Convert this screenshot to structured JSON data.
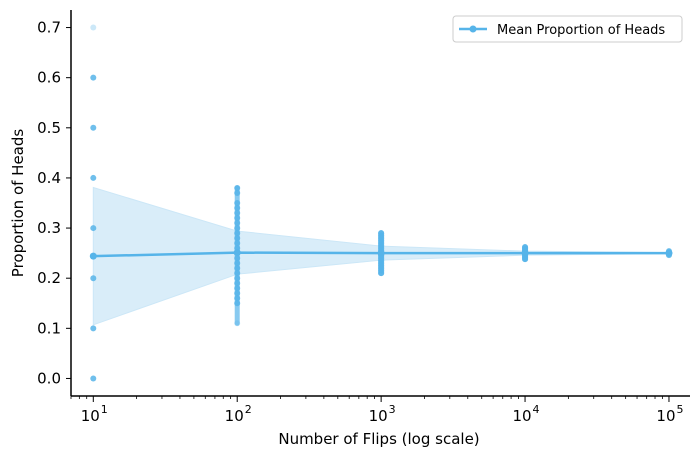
{
  "chart_data": {
    "type": "scatter",
    "title": "",
    "xlabel": "Number of Flips (log scale)",
    "ylabel": "Proportion of Heads",
    "xscale": "log",
    "xlim": [
      7,
      140000
    ],
    "ylim": [
      -0.035,
      0.735
    ],
    "x_ticks": [
      {
        "value": 10,
        "base": "10",
        "exp": "1"
      },
      {
        "value": 100,
        "base": "10",
        "exp": "2"
      },
      {
        "value": 1000,
        "base": "10",
        "exp": "3"
      },
      {
        "value": 10000,
        "base": "10",
        "exp": "4"
      },
      {
        "value": 100000,
        "base": "10",
        "exp": "5"
      }
    ],
    "y_ticks": [
      {
        "value": 0.0,
        "label": "0.0"
      },
      {
        "value": 0.1,
        "label": "0.1"
      },
      {
        "value": 0.2,
        "label": "0.2"
      },
      {
        "value": 0.3,
        "label": "0.3"
      },
      {
        "value": 0.4,
        "label": "0.4"
      },
      {
        "value": 0.5,
        "label": "0.5"
      },
      {
        "value": 0.6,
        "label": "0.6"
      },
      {
        "value": 0.7,
        "label": "0.7"
      }
    ],
    "grid": false,
    "legend": {
      "placement": "top-right",
      "label": "Mean Proportion of Heads"
    },
    "colors": {
      "accent": "#56b4e9",
      "band": "#cce7f7"
    },
    "mean_series": {
      "name": "Mean Proportion of Heads",
      "x": [
        10,
        100,
        1000,
        10000,
        100000
      ],
      "y": [
        0.244,
        0.251,
        0.25,
        0.25,
        0.25
      ]
    },
    "band": {
      "x": [
        10,
        100,
        1000,
        10000,
        100000
      ],
      "lower": [
        0.107,
        0.208,
        0.236,
        0.246,
        0.249
      ],
      "upper": [
        0.381,
        0.294,
        0.264,
        0.254,
        0.251
      ]
    },
    "samples": [
      {
        "x": 10,
        "values": [
          0.0,
          0.1,
          0.2,
          0.3,
          0.4,
          0.5,
          0.6,
          0.7
        ]
      },
      {
        "x": 100,
        "values": [
          0.11,
          0.15,
          0.16,
          0.17,
          0.18,
          0.19,
          0.2,
          0.21,
          0.22,
          0.23,
          0.24,
          0.25,
          0.26,
          0.27,
          0.28,
          0.29,
          0.3,
          0.31,
          0.32,
          0.33,
          0.34,
          0.35,
          0.37,
          0.38
        ]
      },
      {
        "x": 1000,
        "values": [
          0.21,
          0.215,
          0.22,
          0.225,
          0.23,
          0.235,
          0.24,
          0.245,
          0.25,
          0.255,
          0.26,
          0.265,
          0.27,
          0.275,
          0.28,
          0.285,
          0.29
        ]
      },
      {
        "x": 10000,
        "values": [
          0.238,
          0.241,
          0.244,
          0.247,
          0.25,
          0.253,
          0.256,
          0.259,
          0.262
        ]
      },
      {
        "x": 100000,
        "values": [
          0.246,
          0.248,
          0.25,
          0.252,
          0.254
        ]
      }
    ]
  }
}
